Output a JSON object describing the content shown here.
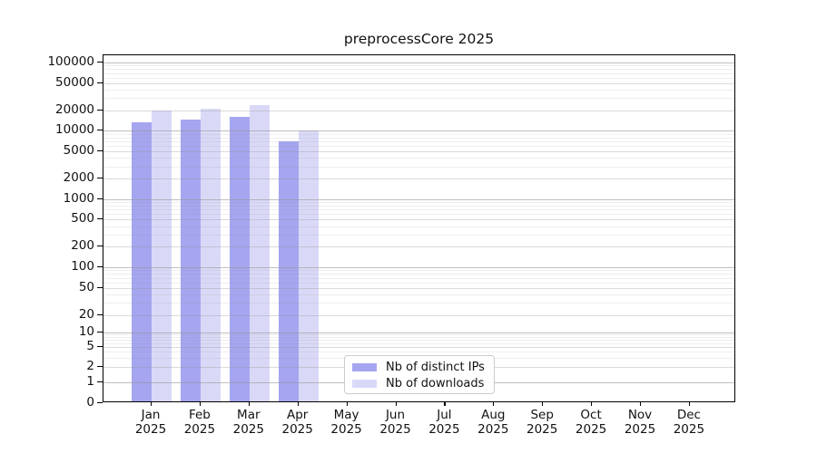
{
  "chart_data": {
    "type": "bar",
    "title": "preprocessCore 2025",
    "xlabel": "",
    "ylabel": "",
    "year_label": "2025",
    "categories": [
      "Jan",
      "Feb",
      "Mar",
      "Apr",
      "May",
      "Jun",
      "Jul",
      "Aug",
      "Sep",
      "Oct",
      "Nov",
      "Dec"
    ],
    "series": [
      {
        "name": "Nb of distinct IPs",
        "color": "#a5a5f0",
        "values": [
          13100,
          14600,
          15800,
          7100,
          0,
          0,
          0,
          0,
          0,
          0,
          0,
          0
        ]
      },
      {
        "name": "Nb of downloads",
        "color": "#d9d9f7",
        "values": [
          19700,
          20800,
          24000,
          10100,
          0,
          0,
          0,
          0,
          0,
          0,
          0,
          0
        ]
      }
    ],
    "y_ticks": [
      0,
      1,
      2,
      5,
      10,
      20,
      50,
      100,
      200,
      500,
      1000,
      2000,
      5000,
      10000,
      20000,
      50000,
      100000
    ],
    "ylim": [
      0,
      100000
    ],
    "yscale": "symlog",
    "grid": true,
    "legend": {
      "position": "bottom-center",
      "entries": [
        "Nb of distinct IPs",
        "Nb of downloads"
      ]
    }
  }
}
